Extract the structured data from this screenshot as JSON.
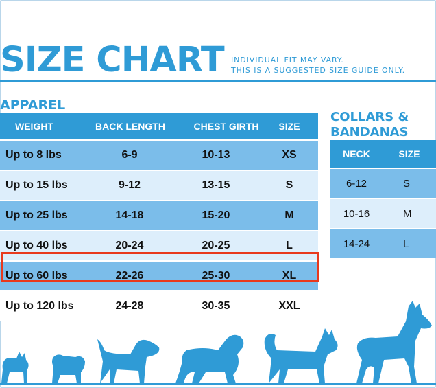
{
  "title": "SIZE CHART",
  "subtitle": {
    "line1": "INDIVIDUAL FIT MAY VARY.",
    "line2": "THIS IS A SUGGESTED SIZE GUIDE ONLY."
  },
  "apparel": {
    "title": "APPAREL",
    "headers": [
      "WEIGHT",
      "BACK LENGTH",
      "CHEST GIRTH",
      "SIZE"
    ],
    "rows": [
      [
        "Up to 8 lbs",
        "6-9",
        "10-13",
        "XS"
      ],
      [
        "Up to 15 lbs",
        "9-12",
        "13-15",
        "S"
      ],
      [
        "Up to 25 lbs",
        "14-18",
        "15-20",
        "M"
      ],
      [
        "Up to 40 lbs",
        "20-24",
        "20-25",
        "L"
      ],
      [
        "Up to 60 lbs",
        "22-26",
        "25-30",
        "XL"
      ],
      [
        "Up to 120 lbs",
        "24-28",
        "30-35",
        "XXL"
      ]
    ],
    "highlighted_row": "Up to 60 lbs"
  },
  "collars": {
    "title_line1": "COLLARS &",
    "title_line2": "BANDANAS",
    "headers": [
      "NECK",
      "SIZE"
    ],
    "rows": [
      [
        "6-12",
        "S"
      ],
      [
        "10-16",
        "M"
      ],
      [
        "14-24",
        "L"
      ]
    ]
  },
  "colors": {
    "accent": "#2f9bd6",
    "row_dark": "#7bbdea",
    "row_light": "#ddeefb",
    "highlight": "#e8391d"
  },
  "icons": [
    "chihuahua-silhouette",
    "pug-silhouette",
    "terrier-silhouette",
    "spaniel-silhouette",
    "husky-silhouette",
    "great-dane-silhouette"
  ]
}
